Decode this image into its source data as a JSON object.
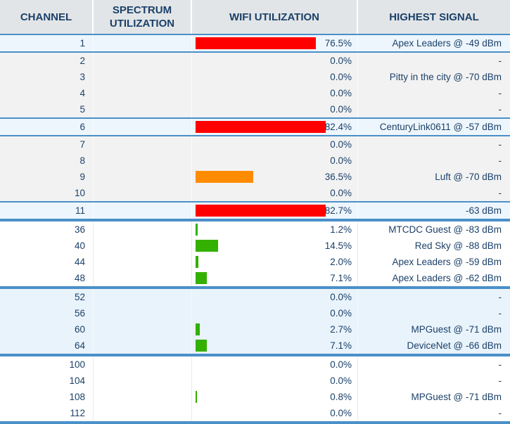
{
  "header": {
    "columns": [
      "CHANNEL",
      "SPECTRUM UTILIZATION",
      "WIFI UTILIZATION",
      "HIGHEST SIGNAL"
    ]
  },
  "colors": {
    "header_bg": "#e2e5e7",
    "header_text": "#1b4069",
    "body_text": "#1b4069",
    "separator_blue": "#4a90c9",
    "row_bg_gray": "#f2f2f2",
    "row_bg_active_blue": "#eef6fd",
    "row_bg_group_blue": "#e9f3fb",
    "row_bg_white": "#ffffff",
    "bars": {
      "red": "#ff0000",
      "orange": "#ff8c00",
      "green": "#33b000"
    }
  },
  "table": {
    "rows": [
      {
        "channel": "1",
        "spectrum": "",
        "wifi_utilization": "76.5%",
        "value": 76.5,
        "bar": "red",
        "highest_signal": "Apex Leaders @ -49 dBm",
        "bg": "blue",
        "separator_after": "thin"
      },
      {
        "channel": "2",
        "spectrum": "",
        "wifi_utilization": "0.0%",
        "value": 0,
        "bar": null,
        "highest_signal": "-",
        "bg": "gray",
        "separator_after": null
      },
      {
        "channel": "3",
        "spectrum": "",
        "wifi_utilization": "0.0%",
        "value": 0,
        "bar": null,
        "highest_signal": "Pitty in the city @ -70 dBm",
        "bg": "gray",
        "separator_after": null
      },
      {
        "channel": "4",
        "spectrum": "",
        "wifi_utilization": "0.0%",
        "value": 0,
        "bar": null,
        "highest_signal": "-",
        "bg": "gray",
        "separator_after": null
      },
      {
        "channel": "5",
        "spectrum": "",
        "wifi_utilization": "0.0%",
        "value": 0,
        "bar": null,
        "highest_signal": "-",
        "bg": "gray",
        "separator_after": "thin"
      },
      {
        "channel": "6",
        "spectrum": "",
        "wifi_utilization": "82.4%",
        "value": 82.4,
        "bar": "red",
        "highest_signal": "CenturyLink0611 @ -57 dBm",
        "bg": "blue",
        "separator_after": "thin"
      },
      {
        "channel": "7",
        "spectrum": "",
        "wifi_utilization": "0.0%",
        "value": 0,
        "bar": null,
        "highest_signal": "-",
        "bg": "gray",
        "separator_after": null
      },
      {
        "channel": "8",
        "spectrum": "",
        "wifi_utilization": "0.0%",
        "value": 0,
        "bar": null,
        "highest_signal": "-",
        "bg": "gray",
        "separator_after": null
      },
      {
        "channel": "9",
        "spectrum": "",
        "wifi_utilization": "36.5%",
        "value": 36.5,
        "bar": "orange",
        "highest_signal": "Luft @ -70 dBm",
        "bg": "gray",
        "separator_after": null
      },
      {
        "channel": "10",
        "spectrum": "",
        "wifi_utilization": "0.0%",
        "value": 0,
        "bar": null,
        "highest_signal": "-",
        "bg": "gray",
        "separator_after": "thin"
      },
      {
        "channel": "11",
        "spectrum": "",
        "wifi_utilization": "82.7%",
        "value": 82.7,
        "bar": "red",
        "highest_signal": "-63 dBm",
        "bg": "blue",
        "separator_after": "thick"
      },
      {
        "channel": "36",
        "spectrum": "",
        "wifi_utilization": "1.2%",
        "value": 1.2,
        "bar": "green",
        "highest_signal": "MTCDC Guest @ -83 dBm",
        "bg": "white",
        "separator_after": null
      },
      {
        "channel": "40",
        "spectrum": "",
        "wifi_utilization": "14.5%",
        "value": 14.5,
        "bar": "green",
        "highest_signal": "Red Sky @ -88 dBm",
        "bg": "white",
        "separator_after": null
      },
      {
        "channel": "44",
        "spectrum": "",
        "wifi_utilization": "2.0%",
        "value": 2.0,
        "bar": "green",
        "highest_signal": "Apex Leaders @ -59 dBm",
        "bg": "white",
        "separator_after": null
      },
      {
        "channel": "48",
        "spectrum": "",
        "wifi_utilization": "7.1%",
        "value": 7.1,
        "bar": "green",
        "highest_signal": "Apex Leaders @ -62 dBm",
        "bg": "white",
        "separator_after": "thick"
      },
      {
        "channel": "52",
        "spectrum": "",
        "wifi_utilization": "0.0%",
        "value": 0,
        "bar": null,
        "highest_signal": "-",
        "bg": "lightblue",
        "separator_after": null
      },
      {
        "channel": "56",
        "spectrum": "",
        "wifi_utilization": "0.0%",
        "value": 0,
        "bar": null,
        "highest_signal": "-",
        "bg": "lightblue",
        "separator_after": null
      },
      {
        "channel": "60",
        "spectrum": "",
        "wifi_utilization": "2.7%",
        "value": 2.7,
        "bar": "green",
        "highest_signal": "MPGuest @ -71 dBm",
        "bg": "lightblue",
        "separator_after": null
      },
      {
        "channel": "64",
        "spectrum": "",
        "wifi_utilization": "7.1%",
        "value": 7.1,
        "bar": "green",
        "highest_signal": "DeviceNet @ -66 dBm",
        "bg": "lightblue",
        "separator_after": "thick"
      },
      {
        "channel": "100",
        "spectrum": "",
        "wifi_utilization": "0.0%",
        "value": 0,
        "bar": null,
        "highest_signal": "-",
        "bg": "white",
        "separator_after": null
      },
      {
        "channel": "104",
        "spectrum": "",
        "wifi_utilization": "0.0%",
        "value": 0,
        "bar": null,
        "highest_signal": "-",
        "bg": "white",
        "separator_after": null
      },
      {
        "channel": "108",
        "spectrum": "",
        "wifi_utilization": "0.8%",
        "value": 0.8,
        "bar": "green",
        "highest_signal": "MPGuest @ -71 dBm",
        "bg": "white",
        "separator_after": null
      },
      {
        "channel": "112",
        "spectrum": "",
        "wifi_utilization": "0.0%",
        "value": 0,
        "bar": null,
        "highest_signal": "-",
        "bg": "white",
        "separator_after": "thick"
      }
    ]
  },
  "chart_data": {
    "type": "bar",
    "title": "WiFi utilization per channel",
    "categories": [
      "1",
      "2",
      "3",
      "4",
      "5",
      "6",
      "7",
      "8",
      "9",
      "10",
      "11",
      "36",
      "40",
      "44",
      "48",
      "52",
      "56",
      "60",
      "64",
      "100",
      "104",
      "108",
      "112"
    ],
    "values": [
      76.5,
      0.0,
      0.0,
      0.0,
      0.0,
      82.4,
      0.0,
      0.0,
      36.5,
      0.0,
      82.7,
      1.2,
      14.5,
      2.0,
      7.1,
      0.0,
      0.0,
      2.7,
      7.1,
      0.0,
      0.0,
      0.8,
      0.0
    ],
    "bar_colors": [
      "red",
      null,
      null,
      null,
      null,
      "red",
      null,
      null,
      "orange",
      null,
      "red",
      "green",
      "green",
      "green",
      "green",
      null,
      null,
      "green",
      "green",
      null,
      null,
      "green",
      null
    ],
    "xlabel": "CHANNEL",
    "ylabel": "WIFI UTILIZATION (%)",
    "ylim": [
      0,
      100
    ],
    "legend_position": "none",
    "grid": false
  }
}
